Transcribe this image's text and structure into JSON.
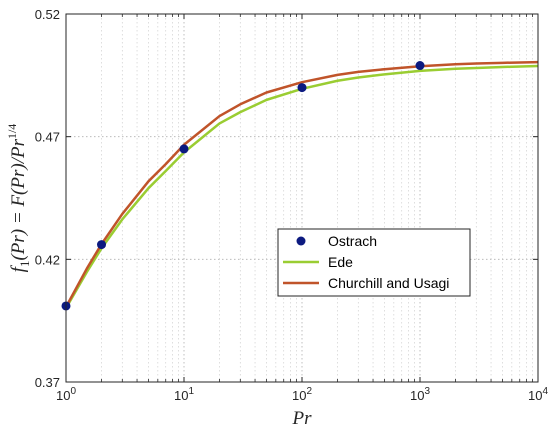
{
  "chart_data": {
    "type": "line",
    "xlabel": "Pr",
    "ylabel": "f₁(Pr) = F(Pr)/Pr^1/4",
    "ylabel_parts": {
      "f": "f",
      "sub": "1",
      "mid": "(Pr) = F(Pr)/Pr",
      "sup": "1/4"
    },
    "x_scale": "log",
    "xlim": [
      1,
      10000
    ],
    "ylim": [
      0.37,
      0.52
    ],
    "x_ticks": [
      {
        "value": 1,
        "base": "10",
        "exp": "0"
      },
      {
        "value": 10,
        "base": "10",
        "exp": "1"
      },
      {
        "value": 100,
        "base": "10",
        "exp": "2"
      },
      {
        "value": 1000,
        "base": "10",
        "exp": "3"
      },
      {
        "value": 10000,
        "base": "10",
        "exp": "4"
      }
    ],
    "y_ticks": [
      {
        "value": 0.37,
        "label": "0.37"
      },
      {
        "value": 0.42,
        "label": "0.42"
      },
      {
        "value": 0.47,
        "label": "0.47"
      },
      {
        "value": 0.52,
        "label": "0.52"
      }
    ],
    "grid": true,
    "legend_position": "center-right",
    "series": [
      {
        "name": "Ostrach",
        "style": "markers",
        "color": "#0c1a80",
        "x": [
          1,
          2,
          10,
          100,
          1000
        ],
        "y": [
          0.401,
          0.426,
          0.465,
          0.49,
          0.499
        ]
      },
      {
        "name": "Ede",
        "style": "line",
        "color": "#9acd32",
        "x": [
          1,
          1.5,
          2,
          3,
          5,
          7,
          10,
          20,
          30,
          50,
          100,
          200,
          300,
          500,
          1000,
          2000,
          3000,
          5000,
          10000
        ],
        "y": [
          0.4001,
          0.4148,
          0.4245,
          0.4363,
          0.449,
          0.456,
          0.4636,
          0.4754,
          0.48,
          0.485,
          0.4895,
          0.4928,
          0.4941,
          0.4954,
          0.4968,
          0.4977,
          0.498,
          0.4984,
          0.4988
        ]
      },
      {
        "name": "Churchill and Usagi",
        "style": "line",
        "color": "#c0542a",
        "x": [
          1,
          1.5,
          2,
          3,
          5,
          7,
          10,
          20,
          30,
          50,
          100,
          200,
          300,
          500,
          1000,
          2000,
          3000,
          5000,
          10000
        ],
        "y": [
          0.4006,
          0.4162,
          0.4262,
          0.4385,
          0.4518,
          0.4588,
          0.4667,
          0.4784,
          0.4832,
          0.488,
          0.4922,
          0.4952,
          0.4964,
          0.4975,
          0.4987,
          0.4995,
          0.4998,
          0.5001,
          0.5004
        ]
      }
    ]
  }
}
